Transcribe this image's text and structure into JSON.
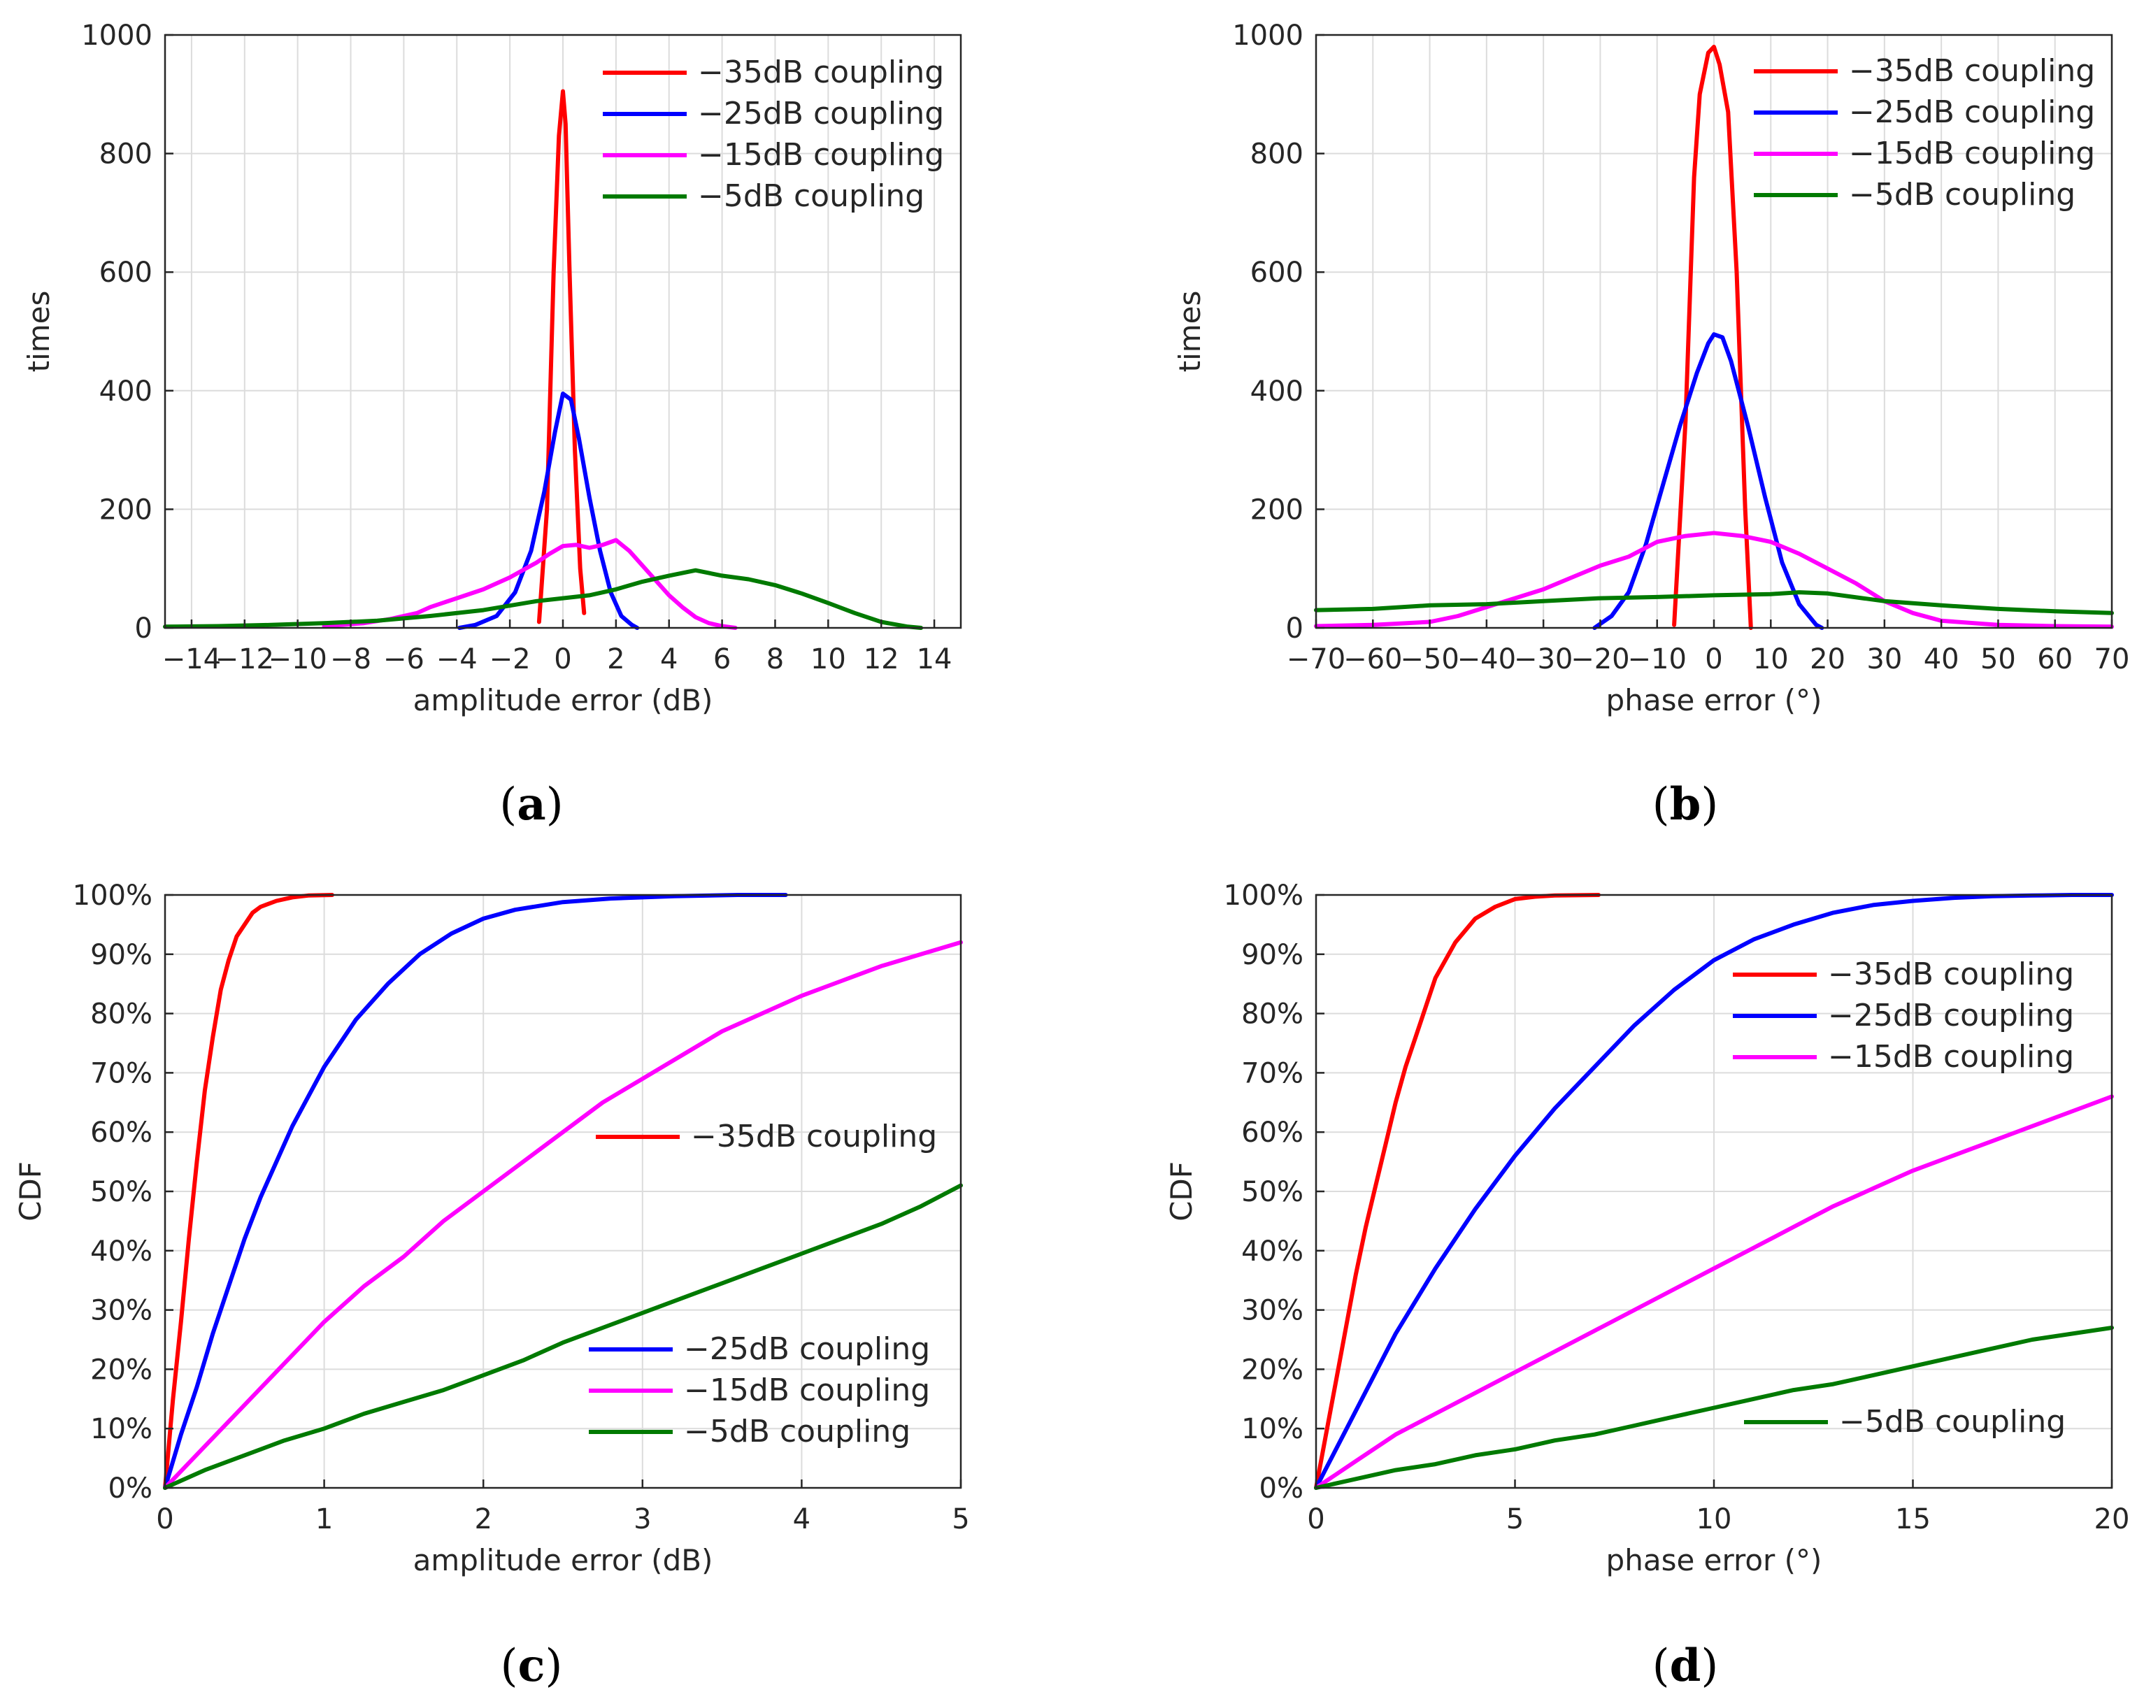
{
  "colors": {
    "c35": "#ff0000",
    "c25": "#0000ff",
    "c15": "#ff00ff",
    "c5": "#007a00",
    "grid": "#dcdcdc",
    "axis": "#262626"
  },
  "chart_data": [
    {
      "id": "a",
      "type": "line",
      "panel_label": "a",
      "xlabel": "amplitude error (dB)",
      "ylabel": "times",
      "xlim": [
        -15,
        15
      ],
      "ylim": [
        0,
        1000
      ],
      "xticks": [
        -14,
        -12,
        -10,
        -8,
        -6,
        -4,
        -2,
        0,
        2,
        4,
        6,
        8,
        10,
        12,
        14
      ],
      "xtick_labels": [
        "−14",
        "−12",
        "−10",
        "−8",
        "−6",
        "−4",
        "−2",
        "0",
        "2",
        "4",
        "6",
        "8",
        "10",
        "12",
        "14"
      ],
      "yticks": [
        0,
        200,
        400,
        600,
        800,
        1000
      ],
      "ytick_labels": [
        "0",
        "200",
        "400",
        "600",
        "800",
        "1000"
      ],
      "grid": true,
      "legend": "top-right",
      "series": [
        {
          "name": "−35dB coupling",
          "color_key": "c35",
          "x": [
            -0.9,
            -0.6,
            -0.35,
            -0.15,
            0,
            0.1,
            0.25,
            0.45,
            0.65,
            0.8
          ],
          "y": [
            10,
            200,
            600,
            830,
            905,
            850,
            600,
            300,
            100,
            25
          ]
        },
        {
          "name": "−25dB coupling",
          "color_key": "c25",
          "x": [
            -3.9,
            -3.3,
            -2.5,
            -1.8,
            -1.2,
            -0.7,
            -0.3,
            0,
            0.3,
            0.6,
            1.0,
            1.4,
            1.8,
            2.2,
            2.6,
            2.8
          ],
          "y": [
            0,
            5,
            20,
            60,
            130,
            230,
            330,
            395,
            385,
            320,
            220,
            130,
            60,
            20,
            5,
            0
          ],
          "x2": []
        },
        {
          "name": "−15dB coupling",
          "color_key": "c15",
          "x": [
            -9,
            -7.5,
            -6.5,
            -5.5,
            -5,
            -4,
            -3,
            -2,
            -1,
            -0.5,
            0,
            0.5,
            1,
            1.5,
            2,
            2.5,
            3,
            3.5,
            4,
            4.5,
            5,
            5.5,
            6,
            6.5
          ],
          "y": [
            3,
            8,
            15,
            25,
            35,
            50,
            65,
            85,
            110,
            125,
            138,
            140,
            135,
            140,
            148,
            130,
            105,
            80,
            55,
            35,
            18,
            8,
            3,
            0
          ]
        },
        {
          "name": "−5dB coupling",
          "color_key": "c5",
          "x": [
            -15,
            -13,
            -11,
            -9,
            -7,
            -5,
            -3,
            -1,
            0,
            1,
            2,
            3,
            4,
            5,
            6,
            7,
            8,
            9,
            10,
            11,
            12,
            13,
            13.5
          ],
          "y": [
            2,
            3,
            5,
            8,
            12,
            20,
            30,
            45,
            50,
            55,
            65,
            78,
            88,
            97,
            88,
            82,
            72,
            58,
            42,
            25,
            10,
            2,
            0
          ]
        }
      ]
    },
    {
      "id": "b",
      "type": "line",
      "panel_label": "b",
      "xlabel": "phase error (°)",
      "ylabel": "times",
      "xlim": [
        -70,
        70
      ],
      "ylim": [
        0,
        1000
      ],
      "xticks": [
        -70,
        -60,
        -50,
        -40,
        -30,
        -20,
        -10,
        0,
        10,
        20,
        30,
        40,
        50,
        60,
        70
      ],
      "xtick_labels": [
        "−70",
        "−60",
        "−50",
        "−40",
        "−30",
        "−20",
        "−10",
        "0",
        "10",
        "20",
        "30",
        "40",
        "50",
        "60",
        "70"
      ],
      "yticks": [
        0,
        200,
        400,
        600,
        800,
        1000
      ],
      "ytick_labels": [
        "0",
        "200",
        "400",
        "600",
        "800",
        "1000"
      ],
      "grid": true,
      "legend": "top-right",
      "series": [
        {
          "name": "−35dB coupling",
          "color_key": "c35",
          "x": [
            -7,
            -5,
            -3.5,
            -2.5,
            -1,
            0,
            1,
            2.5,
            4,
            5.5,
            6.5
          ],
          "y": [
            5,
            350,
            760,
            900,
            970,
            980,
            950,
            870,
            600,
            200,
            0
          ]
        },
        {
          "name": "−25dB coupling",
          "color_key": "c25",
          "x": [
            -21,
            -18,
            -15,
            -12,
            -9,
            -6,
            -3,
            -1,
            0,
            1.5,
            3,
            6,
            9,
            12,
            15,
            18,
            19
          ],
          "y": [
            0,
            20,
            60,
            140,
            240,
            340,
            430,
            480,
            495,
            490,
            450,
            340,
            220,
            110,
            40,
            5,
            0
          ]
        },
        {
          "name": "−15dB coupling",
          "color_key": "c15",
          "x": [
            -70,
            -60,
            -50,
            -45,
            -40,
            -35,
            -30,
            -25,
            -20,
            -15,
            -10,
            -5,
            0,
            5,
            10,
            15,
            20,
            25,
            30,
            35,
            40,
            50,
            60,
            70
          ],
          "y": [
            3,
            5,
            10,
            20,
            35,
            50,
            65,
            85,
            105,
            120,
            145,
            155,
            160,
            155,
            145,
            125,
            100,
            75,
            45,
            25,
            12,
            5,
            3,
            2
          ]
        },
        {
          "name": "−5dB coupling",
          "color_key": "c5",
          "x": [
            -70,
            -60,
            -50,
            -40,
            -30,
            -20,
            -10,
            0,
            10,
            15,
            20,
            30,
            40,
            50,
            60,
            70
          ],
          "y": [
            30,
            32,
            38,
            40,
            45,
            50,
            52,
            55,
            57,
            60,
            58,
            45,
            38,
            32,
            28,
            25
          ]
        }
      ]
    },
    {
      "id": "c",
      "type": "line",
      "panel_label": "c",
      "xlabel": "amplitude error (dB)",
      "ylabel": "CDF",
      "xlim": [
        0,
        5
      ],
      "ylim": [
        0,
        100
      ],
      "xticks": [
        0,
        1,
        2,
        3,
        4,
        5
      ],
      "xtick_labels": [
        "0",
        "1",
        "2",
        "3",
        "4",
        "5"
      ],
      "yticks": [
        0,
        10,
        20,
        30,
        40,
        50,
        60,
        70,
        80,
        90,
        100
      ],
      "ytick_labels": [
        "0%",
        "10%",
        "20%",
        "30%",
        "40%",
        "50%",
        "60%",
        "70%",
        "80%",
        "90%",
        "100%"
      ],
      "grid": true,
      "legend": "split: −35dB mid-right, others lower-right",
      "series": [
        {
          "name": "−35dB coupling",
          "color_key": "c35",
          "x": [
            0,
            0.05,
            0.1,
            0.15,
            0.2,
            0.25,
            0.3,
            0.35,
            0.4,
            0.45,
            0.5,
            0.55,
            0.6,
            0.7,
            0.8,
            0.9,
            1.05
          ],
          "y": [
            0,
            15,
            28,
            42,
            55,
            67,
            76,
            84,
            89,
            93,
            95,
            97,
            98,
            99,
            99.6,
            99.9,
            100
          ]
        },
        {
          "name": "−25dB coupling",
          "color_key": "c25",
          "x": [
            0,
            0.1,
            0.2,
            0.3,
            0.4,
            0.5,
            0.6,
            0.7,
            0.8,
            1.0,
            1.2,
            1.4,
            1.6,
            1.8,
            2.0,
            2.2,
            2.5,
            2.8,
            3.2,
            3.6,
            3.9
          ],
          "y": [
            0,
            9,
            17,
            26,
            34,
            42,
            49,
            55,
            61,
            71,
            79,
            85,
            90,
            93.5,
            96,
            97.5,
            98.8,
            99.4,
            99.8,
            100,
            100
          ]
        },
        {
          "name": "−15dB coupling",
          "color_key": "c15",
          "x": [
            0,
            0.25,
            0.5,
            0.75,
            1.0,
            1.25,
            1.5,
            1.75,
            2.0,
            2.25,
            2.5,
            2.75,
            3.0,
            3.25,
            3.5,
            3.75,
            4.0,
            4.25,
            4.5,
            4.75,
            5.0
          ],
          "y": [
            0,
            7,
            14,
            21,
            28,
            34,
            39,
            45,
            50,
            55,
            60,
            65,
            69,
            73,
            77,
            80,
            83,
            85.5,
            88,
            90,
            92
          ]
        },
        {
          "name": "−5dB coupling",
          "color_key": "c5",
          "x": [
            0,
            0.25,
            0.5,
            0.75,
            1.0,
            1.25,
            1.5,
            1.75,
            2.0,
            2.25,
            2.5,
            2.75,
            3.0,
            3.25,
            3.5,
            3.75,
            4.0,
            4.25,
            4.5,
            4.75,
            5.0
          ],
          "y": [
            0,
            3,
            5.5,
            8,
            10,
            12.5,
            14.5,
            16.5,
            19,
            21.5,
            24.5,
            27,
            29.5,
            32,
            34.5,
            37,
            39.5,
            42,
            44.5,
            47.5,
            51
          ]
        }
      ]
    },
    {
      "id": "d",
      "type": "line",
      "panel_label": "d",
      "xlabel": "phase error (°)",
      "ylabel": "CDF",
      "xlim": [
        0,
        20
      ],
      "ylim": [
        0,
        100
      ],
      "xticks": [
        0,
        5,
        10,
        15,
        20
      ],
      "xtick_labels": [
        "0",
        "5",
        "10",
        "15",
        "20"
      ],
      "yticks": [
        0,
        10,
        20,
        30,
        40,
        50,
        60,
        70,
        80,
        90,
        100
      ],
      "ytick_labels": [
        "0%",
        "10%",
        "20%",
        "30%",
        "40%",
        "50%",
        "60%",
        "70%",
        "80%",
        "90%",
        "100%"
      ],
      "grid": true,
      "legend": "split: upper-right and lower-right",
      "series": [
        {
          "name": "−35dB coupling",
          "color_key": "c35",
          "x": [
            0,
            0.25,
            0.5,
            0.75,
            1.0,
            1.25,
            1.5,
            1.75,
            2.0,
            2.25,
            2.5,
            2.75,
            3.0,
            3.5,
            4.0,
            4.5,
            5.0,
            5.5,
            6.0,
            7.1
          ],
          "y": [
            0,
            9,
            18,
            27,
            36,
            44,
            51,
            58,
            65,
            71,
            76,
            81,
            86,
            92,
            96,
            98,
            99.3,
            99.7,
            99.9,
            100
          ]
        },
        {
          "name": "−25dB coupling",
          "color_key": "c25",
          "x": [
            0,
            1,
            2,
            3,
            4,
            5,
            6,
            7,
            8,
            9,
            10,
            11,
            12,
            13,
            14,
            15,
            16,
            17,
            18,
            19,
            20
          ],
          "y": [
            0,
            13,
            26,
            37,
            47,
            56,
            64,
            71,
            78,
            84,
            89,
            92.5,
            95,
            97,
            98.3,
            99,
            99.5,
            99.8,
            99.9,
            100,
            100
          ]
        },
        {
          "name": "−15dB coupling",
          "color_key": "c15",
          "x": [
            0,
            1,
            2,
            3,
            4,
            5,
            6,
            7,
            8,
            9,
            10,
            11,
            12,
            13,
            14,
            15,
            16,
            17,
            18,
            19,
            20
          ],
          "y": [
            0,
            4.5,
            9,
            12.5,
            16,
            19.5,
            23,
            26.5,
            30,
            33.5,
            37,
            40.5,
            44,
            47.5,
            50.5,
            53.5,
            56,
            58.5,
            61,
            63.5,
            66
          ]
        },
        {
          "name": "−5dB coupling",
          "color_key": "c5",
          "x": [
            0,
            1,
            2,
            3,
            4,
            5,
            6,
            7,
            8,
            9,
            10,
            11,
            12,
            13,
            14,
            15,
            16,
            17,
            18,
            19,
            20
          ],
          "y": [
            0,
            1.5,
            3,
            4,
            5.5,
            6.5,
            8,
            9,
            10.5,
            12,
            13.5,
            15,
            16.5,
            17.5,
            19,
            20.5,
            22,
            23.5,
            25,
            26,
            27
          ]
        }
      ]
    }
  ]
}
